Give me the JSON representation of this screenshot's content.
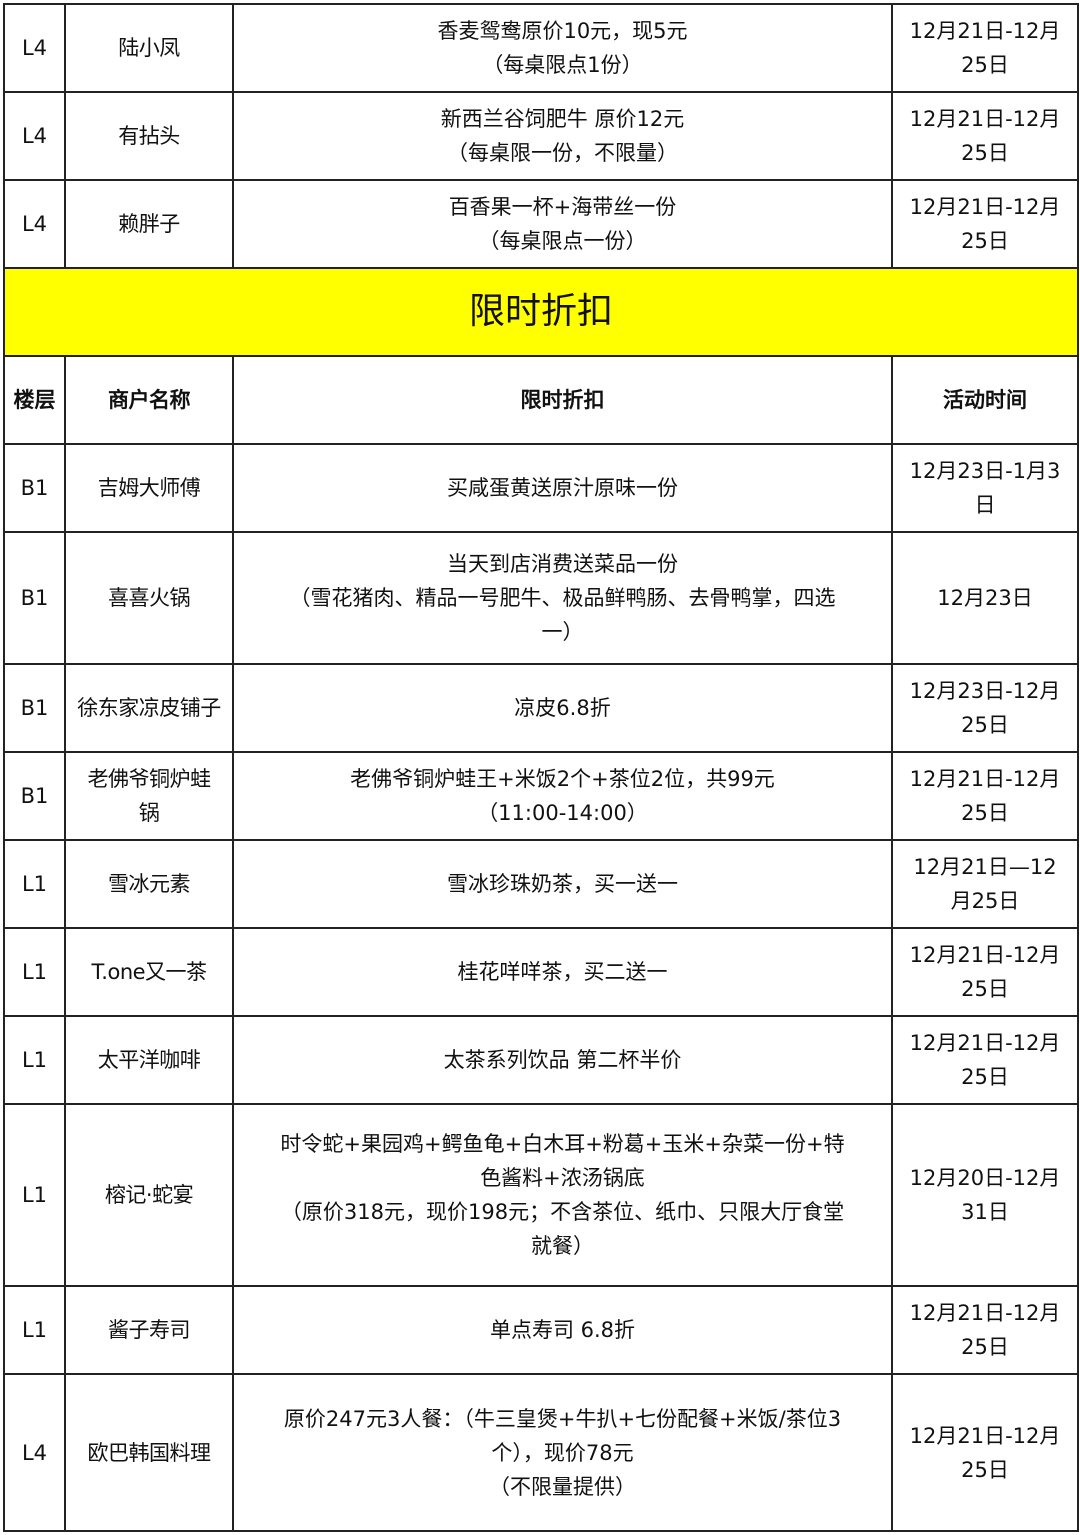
{
  "top_rows": [
    {
      "floor": "L4",
      "merchant": "陆小凤",
      "offer": "香麦鸳鸯原价10元，现5元\n（每桌限点1份）",
      "time": "12月21日-12月\n25日"
    },
    {
      "floor": "L4",
      "merchant": "有拈头",
      "offer": "新西兰谷饲肥牛 原价12元\n（每桌限一份，不限量）",
      "time": "12月21日-12月\n25日"
    },
    {
      "floor": "L4",
      "merchant": "赖胖子",
      "offer": "百香果一杯+海带丝一份\n（每桌限点一份）",
      "time": "12月21日-12月\n25日"
    }
  ],
  "section": {
    "title": "限时折扣",
    "highlight_color": "#ffff00",
    "headers": {
      "floor": "楼层",
      "merchant": "商户名称",
      "offer": "限时折扣",
      "time": "活动时间"
    }
  },
  "rows": [
    {
      "floor": "B1",
      "merchant": "吉姆大师傅",
      "offer": "买咸蛋黄送原汁原味一份",
      "time": "12月23日-1月3\n日"
    },
    {
      "floor": "B1",
      "merchant": "喜喜火锅",
      "offer": "当天到店消费送菜品一份\n（雪花猪肉、精品一号肥牛、极品鲜鸭肠、去骨鸭掌，四选\n一）",
      "time": "12月23日"
    },
    {
      "floor": "B1",
      "merchant": "徐东家凉皮铺子",
      "offer": "凉皮6.8折",
      "time": "12月23日-12月\n25日"
    },
    {
      "floor": "B1",
      "merchant": "老佛爷铜炉蛙\n锅",
      "offer": "老佛爷铜炉蛙王+米饭2个+茶位2位，共99元\n（11:00-14:00）",
      "time": "12月21日-12月\n25日"
    },
    {
      "floor": "L1",
      "merchant": "雪冰元素",
      "offer": "雪冰珍珠奶茶，买一送一",
      "time": "12月21日—12\n月25日"
    },
    {
      "floor": "L1",
      "merchant": "T.one又一茶",
      "offer": "桂花咩咩茶，买二送一",
      "time": "12月21日-12月\n25日"
    },
    {
      "floor": "L1",
      "merchant": "太平洋咖啡",
      "offer": "太茶系列饮品 第二杯半价",
      "time": "12月21日-12月\n25日"
    },
    {
      "floor": "L1",
      "merchant": "榕记·蛇宴",
      "offer": "时令蛇+果园鸡+鳄鱼龟+白木耳+粉葛+玉米+杂菜一份+特\n色酱料+浓汤锅底\n（原价318元，现价198元；不含茶位、纸巾、只限大厅食堂\n就餐）",
      "time": "12月20日-12月\n31日"
    },
    {
      "floor": "L1",
      "merchant": "酱子寿司",
      "offer": "单点寿司 6.8折",
      "time": "12月21日-12月\n25日"
    },
    {
      "floor": "L4",
      "merchant": "欧巴韩国料理",
      "offer": "原价247元3人餐：（牛三皇煲+牛扒+七份配餐+米饭/茶位3\n个），现价78元\n（不限量提供）",
      "time": "12月21日-12月\n25日"
    }
  ]
}
